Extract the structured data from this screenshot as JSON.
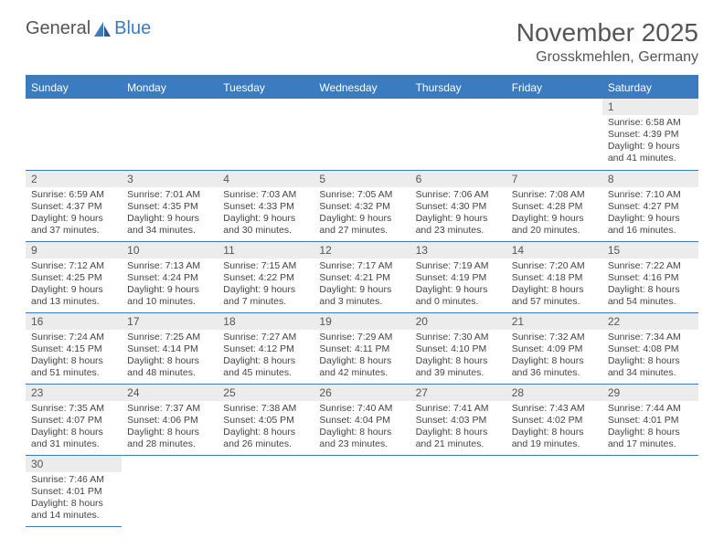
{
  "logo": {
    "part1": "General",
    "part2": "Blue"
  },
  "title": {
    "month": "November 2025",
    "location": "Grosskmehlen, Germany"
  },
  "colors": {
    "header_bg": "#3b7bbf",
    "header_text": "#ffffff",
    "daynum_bg": "#ececec",
    "text": "#444444",
    "title_text": "#555555"
  },
  "weekdays": [
    "Sunday",
    "Monday",
    "Tuesday",
    "Wednesday",
    "Thursday",
    "Friday",
    "Saturday"
  ],
  "first_weekday_index": 6,
  "days": [
    {
      "n": 1,
      "sunrise": "6:58 AM",
      "sunset": "4:39 PM",
      "dl": "9 hours and 41 minutes."
    },
    {
      "n": 2,
      "sunrise": "6:59 AM",
      "sunset": "4:37 PM",
      "dl": "9 hours and 37 minutes."
    },
    {
      "n": 3,
      "sunrise": "7:01 AM",
      "sunset": "4:35 PM",
      "dl": "9 hours and 34 minutes."
    },
    {
      "n": 4,
      "sunrise": "7:03 AM",
      "sunset": "4:33 PM",
      "dl": "9 hours and 30 minutes."
    },
    {
      "n": 5,
      "sunrise": "7:05 AM",
      "sunset": "4:32 PM",
      "dl": "9 hours and 27 minutes."
    },
    {
      "n": 6,
      "sunrise": "7:06 AM",
      "sunset": "4:30 PM",
      "dl": "9 hours and 23 minutes."
    },
    {
      "n": 7,
      "sunrise": "7:08 AM",
      "sunset": "4:28 PM",
      "dl": "9 hours and 20 minutes."
    },
    {
      "n": 8,
      "sunrise": "7:10 AM",
      "sunset": "4:27 PM",
      "dl": "9 hours and 16 minutes."
    },
    {
      "n": 9,
      "sunrise": "7:12 AM",
      "sunset": "4:25 PM",
      "dl": "9 hours and 13 minutes."
    },
    {
      "n": 10,
      "sunrise": "7:13 AM",
      "sunset": "4:24 PM",
      "dl": "9 hours and 10 minutes."
    },
    {
      "n": 11,
      "sunrise": "7:15 AM",
      "sunset": "4:22 PM",
      "dl": "9 hours and 7 minutes."
    },
    {
      "n": 12,
      "sunrise": "7:17 AM",
      "sunset": "4:21 PM",
      "dl": "9 hours and 3 minutes."
    },
    {
      "n": 13,
      "sunrise": "7:19 AM",
      "sunset": "4:19 PM",
      "dl": "9 hours and 0 minutes."
    },
    {
      "n": 14,
      "sunrise": "7:20 AM",
      "sunset": "4:18 PM",
      "dl": "8 hours and 57 minutes."
    },
    {
      "n": 15,
      "sunrise": "7:22 AM",
      "sunset": "4:16 PM",
      "dl": "8 hours and 54 minutes."
    },
    {
      "n": 16,
      "sunrise": "7:24 AM",
      "sunset": "4:15 PM",
      "dl": "8 hours and 51 minutes."
    },
    {
      "n": 17,
      "sunrise": "7:25 AM",
      "sunset": "4:14 PM",
      "dl": "8 hours and 48 minutes."
    },
    {
      "n": 18,
      "sunrise": "7:27 AM",
      "sunset": "4:12 PM",
      "dl": "8 hours and 45 minutes."
    },
    {
      "n": 19,
      "sunrise": "7:29 AM",
      "sunset": "4:11 PM",
      "dl": "8 hours and 42 minutes."
    },
    {
      "n": 20,
      "sunrise": "7:30 AM",
      "sunset": "4:10 PM",
      "dl": "8 hours and 39 minutes."
    },
    {
      "n": 21,
      "sunrise": "7:32 AM",
      "sunset": "4:09 PM",
      "dl": "8 hours and 36 minutes."
    },
    {
      "n": 22,
      "sunrise": "7:34 AM",
      "sunset": "4:08 PM",
      "dl": "8 hours and 34 minutes."
    },
    {
      "n": 23,
      "sunrise": "7:35 AM",
      "sunset": "4:07 PM",
      "dl": "8 hours and 31 minutes."
    },
    {
      "n": 24,
      "sunrise": "7:37 AM",
      "sunset": "4:06 PM",
      "dl": "8 hours and 28 minutes."
    },
    {
      "n": 25,
      "sunrise": "7:38 AM",
      "sunset": "4:05 PM",
      "dl": "8 hours and 26 minutes."
    },
    {
      "n": 26,
      "sunrise": "7:40 AM",
      "sunset": "4:04 PM",
      "dl": "8 hours and 23 minutes."
    },
    {
      "n": 27,
      "sunrise": "7:41 AM",
      "sunset": "4:03 PM",
      "dl": "8 hours and 21 minutes."
    },
    {
      "n": 28,
      "sunrise": "7:43 AM",
      "sunset": "4:02 PM",
      "dl": "8 hours and 19 minutes."
    },
    {
      "n": 29,
      "sunrise": "7:44 AM",
      "sunset": "4:01 PM",
      "dl": "8 hours and 17 minutes."
    },
    {
      "n": 30,
      "sunrise": "7:46 AM",
      "sunset": "4:01 PM",
      "dl": "8 hours and 14 minutes."
    }
  ],
  "labels": {
    "sunrise": "Sunrise:",
    "sunset": "Sunset:",
    "daylight": "Daylight:"
  }
}
